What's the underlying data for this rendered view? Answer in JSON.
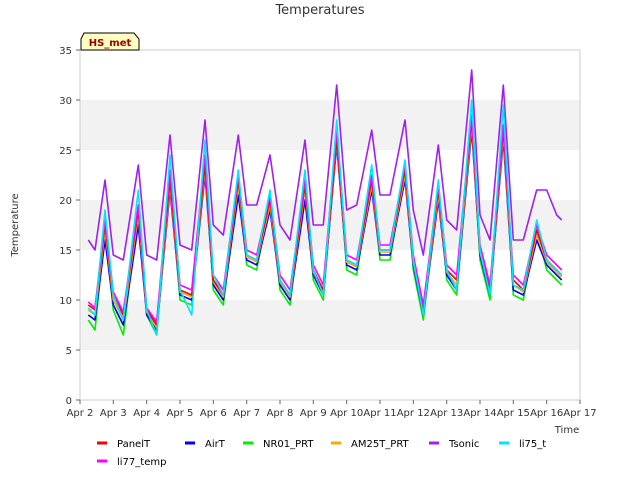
{
  "chart_data": {
    "type": "line",
    "title": "Temperatures",
    "xlabel": "Time",
    "ylabel": "Temperature",
    "badge": "HS_met",
    "ylim": [
      0,
      35
    ],
    "yticks": [
      0,
      5,
      10,
      15,
      20,
      25,
      30,
      35
    ],
    "xlim": [
      0,
      15
    ],
    "xtick_labels": [
      "Apr 2",
      "Apr 3",
      "Apr 4",
      "Apr 5",
      "Apr 6",
      "Apr 7",
      "Apr 8",
      "Apr 9",
      "Apr 10",
      "Apr 11",
      "Apr 12",
      "Apr 13",
      "Apr 14",
      "Apr 15",
      "Apr 16",
      "Apr 17"
    ],
    "grid": "horizontal bands",
    "x_days": [
      0.25,
      0.45,
      0.75,
      1.0,
      1.3,
      1.75,
      2.0,
      2.3,
      2.7,
      3.0,
      3.35,
      3.75,
      4.0,
      4.3,
      4.75,
      5.0,
      5.3,
      5.7,
      6.0,
      6.3,
      6.75,
      7.0,
      7.3,
      7.7,
      8.0,
      8.3,
      8.75,
      9.0,
      9.3,
      9.75,
      10.0,
      10.3,
      10.75,
      11.0,
      11.3,
      11.75,
      12.0,
      12.3,
      12.7,
      13.0,
      13.3,
      13.7,
      14.0,
      14.3,
      14.45
    ],
    "series": [
      {
        "name": "PanelT",
        "color": "#ff0000",
        "values": [
          9.5,
          9.0,
          17.5,
          10.5,
          8.5,
          19.0,
          9.0,
          7.5,
          22.0,
          11.0,
          10.5,
          23.5,
          12.0,
          10.5,
          22.0,
          14.5,
          14.0,
          20.0,
          12.0,
          10.5,
          21.5,
          13.0,
          11.0,
          26.0,
          14.0,
          13.5,
          22.0,
          15.0,
          15.0,
          23.0,
          14.0,
          9.0,
          21.0,
          13.0,
          12.0,
          28.0,
          15.0,
          11.0,
          27.0,
          12.0,
          11.0,
          17.0,
          14.0,
          13.0,
          12.5
        ]
      },
      {
        "name": "AirT",
        "color": "#0000ff",
        "values": [
          8.5,
          8.0,
          16.0,
          9.5,
          7.5,
          17.5,
          8.5,
          7.0,
          21.0,
          10.5,
          10.0,
          22.5,
          11.5,
          10.0,
          20.5,
          14.0,
          13.5,
          19.0,
          11.5,
          10.0,
          20.0,
          12.5,
          10.5,
          25.5,
          13.5,
          13.0,
          21.0,
          14.5,
          14.5,
          22.0,
          13.5,
          8.5,
          20.0,
          12.5,
          11.0,
          27.0,
          14.5,
          10.5,
          26.0,
          11.0,
          10.5,
          16.0,
          13.5,
          12.5,
          12.0
        ]
      },
      {
        "name": "NR01_PRT",
        "color": "#00ee00",
        "values": [
          8.0,
          7.0,
          17.0,
          9.0,
          6.5,
          19.0,
          8.5,
          6.5,
          22.0,
          10.0,
          9.5,
          24.0,
          11.0,
          9.5,
          21.5,
          13.5,
          13.0,
          20.0,
          11.0,
          9.5,
          21.5,
          12.0,
          10.0,
          26.5,
          13.0,
          12.5,
          22.0,
          14.0,
          14.0,
          23.0,
          13.0,
          8.0,
          21.5,
          12.0,
          10.5,
          28.0,
          14.0,
          10.0,
          27.5,
          10.5,
          10.0,
          17.0,
          13.0,
          12.0,
          11.5
        ]
      },
      {
        "name": "AM25T_PRT",
        "color": "#ffaa00",
        "values": [
          9.0,
          8.5,
          17.0,
          10.0,
          8.0,
          18.5,
          8.8,
          7.2,
          21.5,
          10.8,
          10.3,
          23.0,
          11.8,
          10.3,
          21.5,
          14.3,
          13.8,
          19.5,
          11.8,
          10.3,
          21.0,
          12.8,
          10.8,
          25.8,
          13.8,
          13.3,
          21.5,
          14.8,
          14.8,
          22.5,
          13.8,
          8.8,
          20.5,
          12.8,
          11.5,
          27.5,
          14.8,
          10.8,
          26.5,
          11.5,
          10.8,
          16.5,
          13.8,
          12.8,
          12.3
        ]
      },
      {
        "name": "Tsonic",
        "color": "#a020f0",
        "values": [
          16.0,
          15.0,
          22.0,
          14.5,
          14.0,
          23.5,
          14.5,
          14.0,
          26.5,
          15.5,
          15.0,
          28.0,
          17.5,
          16.5,
          26.5,
          19.5,
          19.5,
          24.5,
          17.5,
          16.0,
          26.0,
          17.5,
          17.5,
          31.5,
          19.0,
          19.5,
          27.0,
          20.5,
          20.5,
          28.0,
          19.0,
          14.5,
          25.5,
          18.0,
          17.0,
          33.0,
          18.5,
          16.0,
          31.5,
          16.0,
          16.0,
          21.0,
          21.0,
          18.5,
          18.0
        ]
      },
      {
        "name": "li75_t",
        "color": "#00e5ff",
        "values": [
          9.2,
          8.5,
          19.0,
          10.5,
          8.0,
          21.0,
          9.0,
          6.5,
          24.5,
          11.0,
          8.5,
          26.0,
          12.5,
          10.5,
          23.0,
          14.5,
          14.0,
          21.0,
          12.0,
          10.5,
          23.0,
          13.0,
          10.5,
          28.0,
          14.0,
          13.5,
          23.5,
          15.0,
          15.0,
          24.0,
          14.0,
          8.5,
          22.0,
          13.0,
          11.0,
          30.0,
          15.0,
          10.5,
          29.5,
          11.5,
          11.0,
          18.0,
          14.0,
          13.0,
          12.5
        ]
      },
      {
        "name": "li77_temp",
        "color": "#ff00ff",
        "values": [
          9.8,
          9.2,
          18.0,
          10.8,
          8.8,
          19.5,
          9.2,
          7.8,
          23.0,
          11.5,
          11.0,
          24.5,
          12.5,
          11.0,
          22.5,
          15.0,
          14.5,
          20.5,
          12.5,
          11.0,
          22.0,
          13.5,
          11.5,
          27.0,
          14.5,
          14.0,
          22.5,
          15.5,
          15.5,
          23.5,
          14.5,
          9.5,
          21.5,
          13.5,
          12.5,
          28.5,
          15.5,
          11.5,
          27.5,
          12.5,
          11.5,
          17.5,
          14.5,
          13.5,
          13.0
        ]
      }
    ]
  }
}
